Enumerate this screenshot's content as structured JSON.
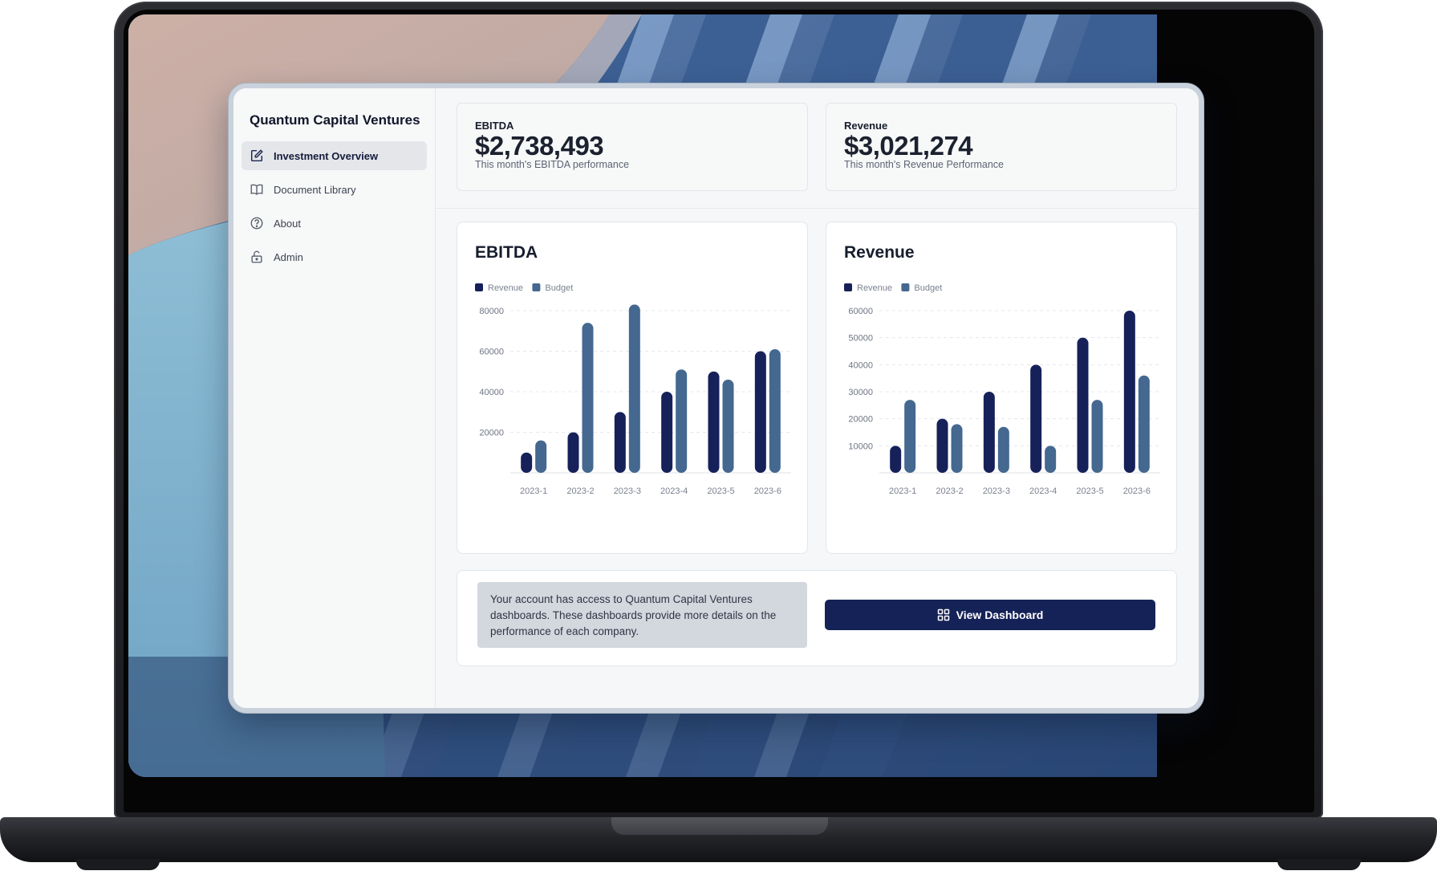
{
  "app": {
    "brand": "Quantum Capital Ventures"
  },
  "sidebar": {
    "items": [
      {
        "label": "Investment Overview",
        "icon": "edit-box-icon",
        "active": true
      },
      {
        "label": "Document Library",
        "icon": "open-book-icon",
        "active": false
      },
      {
        "label": "About",
        "icon": "question-circle-icon",
        "active": false
      },
      {
        "label": "Admin",
        "icon": "unlock-icon",
        "active": false
      }
    ]
  },
  "kpis": [
    {
      "label": "EBITDA",
      "value": "$2,738,493",
      "subtitle": "This month's EBITDA performance"
    },
    {
      "label": "Revenue",
      "value": "$3,021,274",
      "subtitle": "This month's Revenue Performance"
    }
  ],
  "info": {
    "text": "Your account has access to Quantum Capital Ventures dashboards. These dashboards provide more details on the performance of each company.",
    "button_label": "View Dashboard",
    "button_icon": "grid-icon"
  },
  "colors": {
    "primary": "#152257",
    "series_dark": "#16215a",
    "series_light": "#44688f"
  },
  "chart_data": [
    {
      "type": "bar",
      "title": "EBITDA",
      "categories": [
        "2023-1",
        "2023-2",
        "2023-3",
        "2023-4",
        "2023-5",
        "2023-6"
      ],
      "series": [
        {
          "name": "Revenue",
          "values": [
            10000,
            20000,
            30000,
            40000,
            50000,
            60000
          ]
        },
        {
          "name": "Budget",
          "values": [
            16000,
            74000,
            83000,
            51000,
            46000,
            61000
          ]
        }
      ],
      "yticks": [
        20000,
        40000,
        60000,
        80000
      ],
      "ylim": [
        0,
        80000
      ],
      "legend": "top-left",
      "grid": true
    },
    {
      "type": "bar",
      "title": "Revenue",
      "categories": [
        "2023-1",
        "2023-2",
        "2023-3",
        "2023-4",
        "2023-5",
        "2023-6"
      ],
      "series": [
        {
          "name": "Revenue",
          "values": [
            10000,
            20000,
            30000,
            40000,
            50000,
            60000
          ]
        },
        {
          "name": "Budget",
          "values": [
            27000,
            18000,
            17000,
            10000,
            27000,
            36000
          ]
        }
      ],
      "yticks": [
        10000,
        20000,
        30000,
        40000,
        50000,
        60000
      ],
      "ylim": [
        0,
        60000
      ],
      "legend": "top-left",
      "grid": true
    }
  ]
}
